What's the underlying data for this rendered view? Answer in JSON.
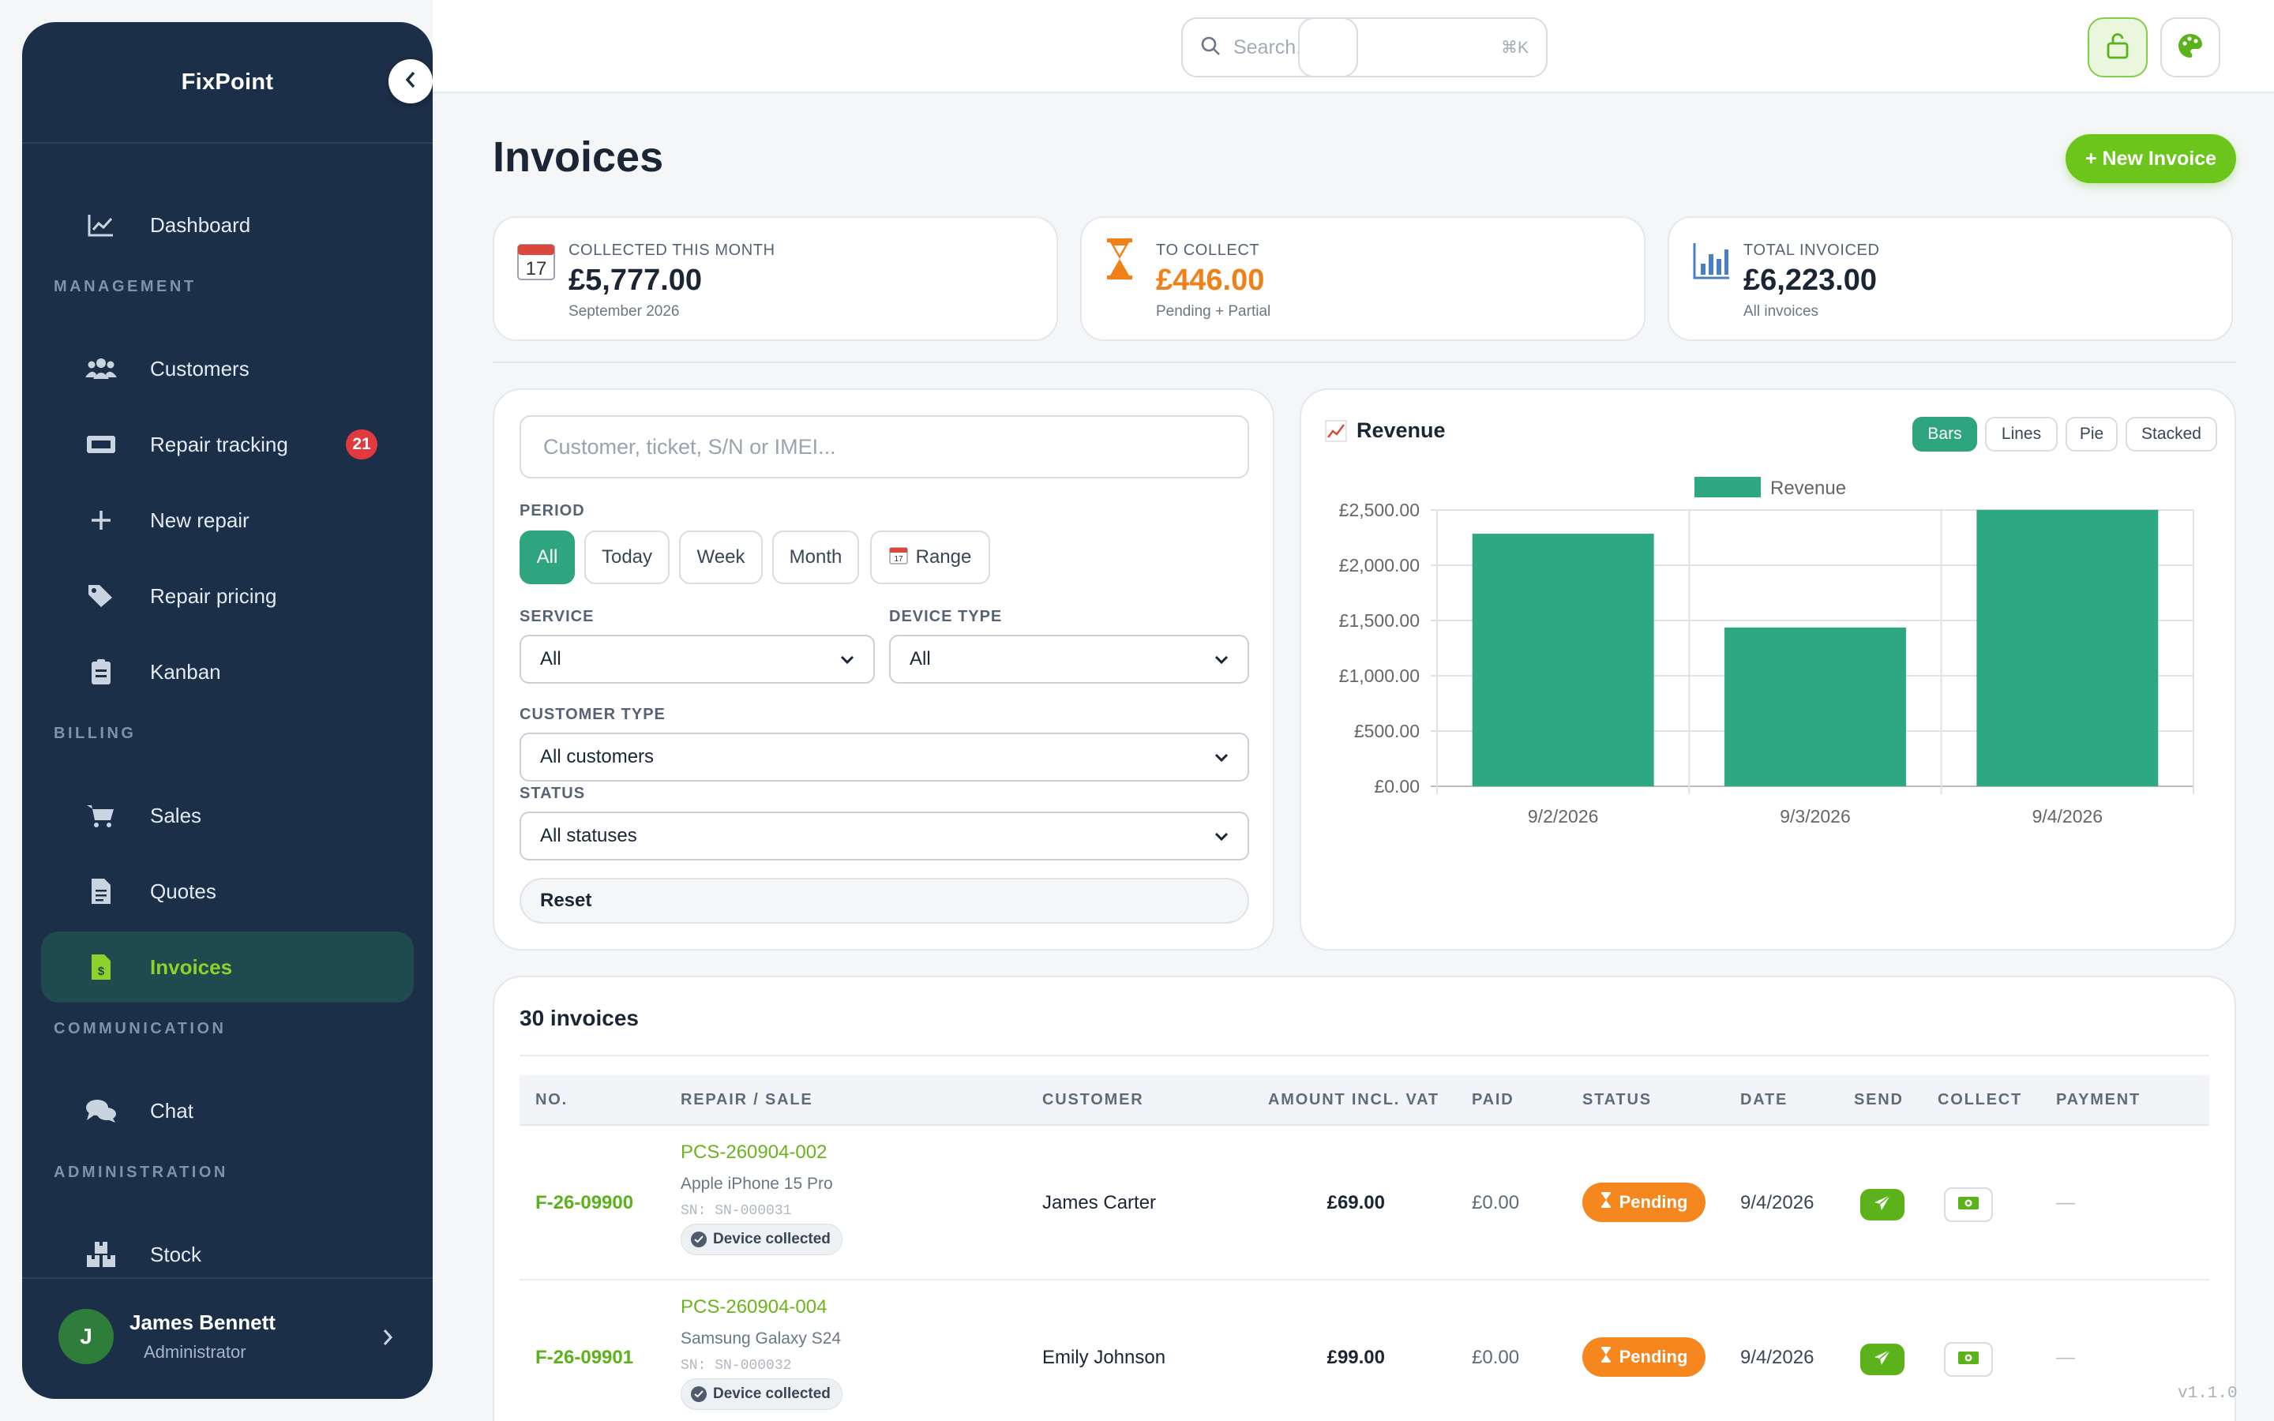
{
  "sidebar": {
    "brand": "FixPoint",
    "items": [
      {
        "label": "Dashboard",
        "icon": "chart-line-icon"
      },
      {
        "label": "Customers",
        "icon": "users-icon"
      },
      {
        "label": "Repair tracking",
        "icon": "ticket-icon",
        "badge": "21"
      },
      {
        "label": "New repair",
        "icon": "plus-icon"
      },
      {
        "label": "Repair pricing",
        "icon": "tags-icon"
      },
      {
        "label": "Kanban",
        "icon": "clipboard-icon"
      },
      {
        "label": "Sales",
        "icon": "cart-icon"
      },
      {
        "label": "Quotes",
        "icon": "file-icon"
      },
      {
        "label": "Invoices",
        "icon": "invoice-icon",
        "active": true
      },
      {
        "label": "Chat",
        "icon": "chat-icon"
      },
      {
        "label": "Stock",
        "icon": "boxes-icon"
      }
    ],
    "sections": {
      "management": "MANAGEMENT",
      "billing": "BILLING",
      "communication": "COMMUNICATION",
      "administration": "ADMINISTRATION"
    },
    "user": {
      "initial": "J",
      "name": "James Bennett",
      "role": "Administrator"
    }
  },
  "topbar": {
    "search_placeholder": "Search...",
    "search_shortcut": "⌘K"
  },
  "page": {
    "title": "Invoices",
    "new_button": "+ New Invoice"
  },
  "stats": [
    {
      "label": "COLLECTED THIS MONTH",
      "value": "£5,777.00",
      "sub": "September 2026",
      "icon": "calendar-icon",
      "calendar_day": "17"
    },
    {
      "label": "TO COLLECT",
      "value": "£446.00",
      "sub": "Pending + Partial",
      "icon": "hourglass-icon"
    },
    {
      "label": "TOTAL INVOICED",
      "value": "£6,223.00",
      "sub": "All invoices",
      "icon": "bar-chart-icon"
    }
  ],
  "filters": {
    "search_placeholder": "Customer, ticket, S/N or IMEI...",
    "period_label": "PERIOD",
    "period_options": [
      "All",
      "Today",
      "Week",
      "Month",
      "Range"
    ],
    "period_selected": "All",
    "service_label": "SERVICE",
    "service_value": "All",
    "device_type_label": "DEVICE TYPE",
    "device_type_value": "All",
    "customer_type_label": "CUSTOMER TYPE",
    "customer_type_value": "All customers",
    "status_label": "STATUS",
    "status_value": "All statuses",
    "reset_label": "Reset"
  },
  "revenue": {
    "title": "Revenue",
    "chart_types": [
      "Bars",
      "Lines",
      "Pie",
      "Stacked"
    ],
    "chart_type_selected": "Bars"
  },
  "chart_data": {
    "type": "bar",
    "categories": [
      "9/2/2026",
      "9/3/2026",
      "9/4/2026"
    ],
    "series": [
      {
        "name": "Revenue",
        "values": [
          2285,
          1437,
          2501
        ]
      }
    ],
    "color": "#2ea882",
    "yticks": [
      "£0.00",
      "£500.00",
      "£1,000.00",
      "£1,500.00",
      "£2,000.00",
      "£2,500.00"
    ],
    "ylim": [
      0,
      2500
    ],
    "legend": "top",
    "grid": true
  },
  "table": {
    "count_label": "30 invoices",
    "columns": [
      "NO.",
      "REPAIR / SALE",
      "CUSTOMER",
      "AMOUNT INCL. VAT",
      "PAID",
      "STATUS",
      "DATE",
      "SEND",
      "COLLECT",
      "PAYMENT"
    ],
    "rows": [
      {
        "no": "F-26-09900",
        "ref": "PCS-260904-002",
        "device": "Apple iPhone 15 Pro",
        "sn": "SN: SN-000031",
        "tag": "Device collected",
        "customer": "James Carter",
        "amount": "£69.00",
        "paid": "£0.00",
        "status": "Pending",
        "date": "9/4/2026",
        "payment": "—"
      },
      {
        "no": "F-26-09901",
        "ref": "PCS-260904-004",
        "device": "Samsung Galaxy S24",
        "sn": "SN: SN-000032",
        "tag": "Device collected",
        "customer": "Emily Johnson",
        "amount": "£99.00",
        "paid": "£0.00",
        "status": "Pending",
        "date": "9/4/2026",
        "payment": "—"
      }
    ]
  },
  "colors": {
    "sidebar_bg": "#1c2f48",
    "accent_green": "#6cc51a",
    "teal": "#2fa57f",
    "pending_orange": "#f6871f",
    "to_collect_orange": "#f08018"
  },
  "version": "v1.1.0"
}
